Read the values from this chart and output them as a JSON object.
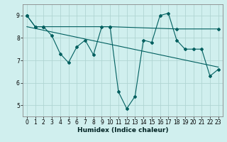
{
  "title": "",
  "xlabel": "Humidex (Indice chaleur)",
  "background_color": "#d0efee",
  "grid_color": "#b0d5d3",
  "line_color": "#005f5f",
  "xlim": [
    -0.5,
    23.5
  ],
  "ylim": [
    4.5,
    9.5
  ],
  "yticks": [
    5,
    6,
    7,
    8,
    9
  ],
  "xticks": [
    0,
    1,
    2,
    3,
    4,
    5,
    6,
    7,
    8,
    9,
    10,
    11,
    12,
    13,
    14,
    15,
    16,
    17,
    18,
    19,
    20,
    21,
    22,
    23
  ],
  "series1_x": [
    0,
    1,
    2,
    3,
    4,
    5,
    6,
    7,
    8,
    9,
    10,
    11,
    12,
    13,
    14,
    15,
    16,
    17,
    18,
    19,
    20,
    21,
    22,
    23
  ],
  "series1_y": [
    9.0,
    8.5,
    8.5,
    8.1,
    7.3,
    6.9,
    7.6,
    7.9,
    7.25,
    8.5,
    8.5,
    5.6,
    4.85,
    5.4,
    7.9,
    7.8,
    9.0,
    9.1,
    7.9,
    7.5,
    7.5,
    7.5,
    6.3,
    6.6
  ],
  "series2_x": [
    0,
    1,
    2,
    10,
    18,
    23
  ],
  "series2_y": [
    9.0,
    8.5,
    8.5,
    8.5,
    8.4,
    8.4
  ],
  "series3_x": [
    0,
    23
  ],
  "series3_y": [
    8.5,
    6.7
  ],
  "tick_fontsize": 5.5,
  "xlabel_fontsize": 6.5,
  "spine_color": "#888888"
}
